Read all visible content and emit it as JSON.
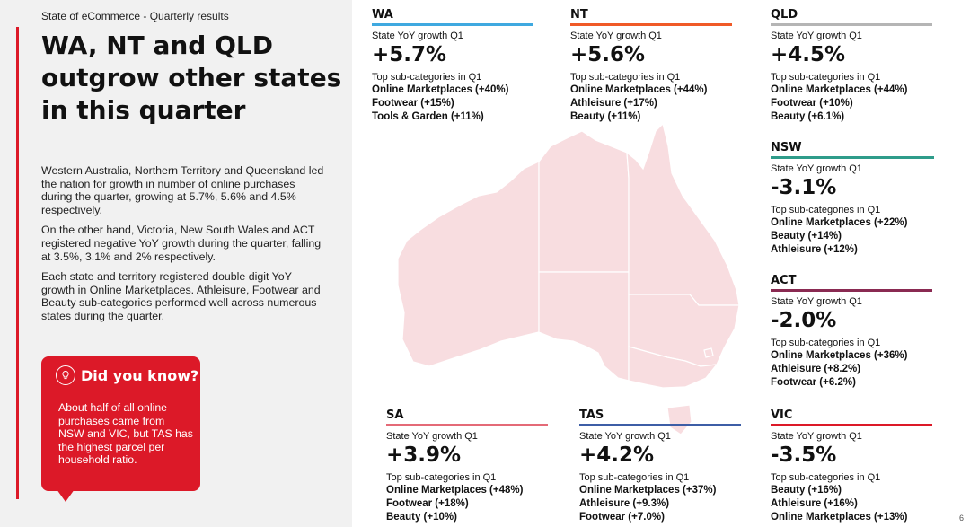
{
  "header": {
    "kicker": "State of eCommerce - Quarterly results",
    "headline": "WA, NT and QLD outgrow other states in this quarter"
  },
  "body": {
    "paragraphs": [
      "Western Australia, Northern Territory and Queensland led the nation for growth in number of online purchases during the quarter, growing at 5.7%, 5.6% and 4.5% respectively.",
      "On the other hand, Victoria, New South Wales and ACT registered negative YoY growth during the quarter, falling at 3.5%, 3.1% and 2% respectively.",
      "Each state and territory registered double digit YoY growth in Online Marketplaces. Athleisure, Footwear and Beauty sub-categories performed well across numerous states during the quarter."
    ]
  },
  "did_you_know": {
    "icon": "lightbulb-icon",
    "title": "Did you know?",
    "text": "About half of all online purchases came from NSW and VIC, but TAS has the highest parcel per household ratio."
  },
  "colors": {
    "accent": "#dc1928",
    "panel": "#f1f1f1",
    "map_fill": "#f8dde0",
    "map_border": "#ffffff"
  },
  "labels": {
    "growth_label": "State YoY growth Q1",
    "top_label": "Top sub-categories in Q1"
  },
  "states": {
    "wa": {
      "name": "WA",
      "color": "#3fa9e0",
      "growth": "+5.7%",
      "items": [
        "Online Marketplaces (+40%)",
        "Footwear (+15%)",
        "Tools & Garden (+11%)"
      ]
    },
    "nt": {
      "name": "NT",
      "color": "#f05a28",
      "growth": "+5.6%",
      "items": [
        "Online Marketplaces (+44%)",
        "Athleisure (+17%)",
        "Beauty (+11%)"
      ]
    },
    "qld": {
      "name": "QLD",
      "color": "#b5b5b5",
      "growth": "+4.5%",
      "items": [
        "Online Marketplaces (+44%)",
        "Footwear (+10%)",
        "Beauty (+6.1%)"
      ]
    },
    "nsw": {
      "name": "NSW",
      "color": "#2e9c8a",
      "growth": "-3.1%",
      "items": [
        "Online Marketplaces (+22%)",
        "Beauty (+14%)",
        "Athleisure (+12%)"
      ]
    },
    "act": {
      "name": "ACT",
      "color": "#8a2a52",
      "growth": "-2.0%",
      "items": [
        "Online Marketplaces (+36%)",
        "Athleisure (+8.2%)",
        "Footwear (+6.2%)"
      ]
    },
    "sa": {
      "name": "SA",
      "color": "#e46a77",
      "growth": "+3.9%",
      "items": [
        "Online Marketplaces (+48%)",
        "Footwear (+18%)",
        "Beauty (+10%)"
      ]
    },
    "tas": {
      "name": "TAS",
      "color": "#3d5ea6",
      "growth": "+4.2%",
      "items": [
        "Online Marketplaces (+37%)",
        "Athleisure (+9.3%)",
        "Footwear (+7.0%)"
      ]
    },
    "vic": {
      "name": "VIC",
      "color": "#dc1928",
      "growth": "-3.5%",
      "items": [
        "Beauty (+16%)",
        "Athleisure (+16%)",
        "Online Marketplaces (+13%)"
      ]
    }
  },
  "footer": {
    "page_number": "6"
  }
}
